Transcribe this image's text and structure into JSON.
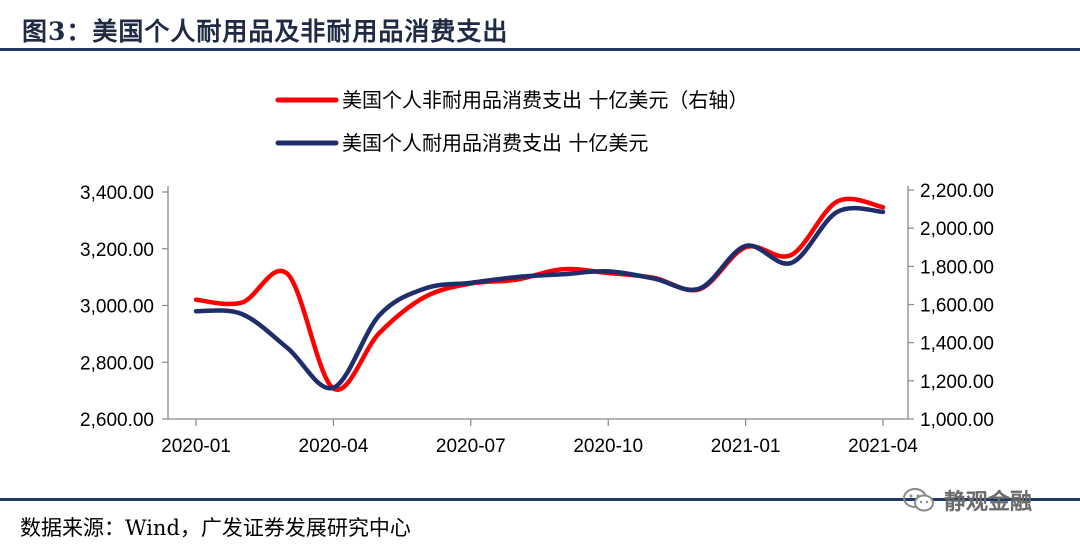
{
  "figure": {
    "title": "图3：美国个人耐用品及非耐用品消费支出",
    "source": "数据来源：Wind，广发证券发展研究中心"
  },
  "watermark": {
    "icon": "wechat-icon",
    "text": "静观金融"
  },
  "chart_data": {
    "type": "line",
    "grid": false,
    "legend_position": "top-center",
    "x_ticks": [
      "2020-01",
      "2020-04",
      "2020-07",
      "2020-10",
      "2021-01",
      "2021-04"
    ],
    "x": [
      "2020-01",
      "2020-02",
      "2020-03",
      "2020-04",
      "2020-05",
      "2020-06",
      "2020-07",
      "2020-08",
      "2020-09",
      "2020-10",
      "2020-11",
      "2020-12",
      "2021-01",
      "2021-02",
      "2021-03",
      "2021-04"
    ],
    "y_left": {
      "range": [
        2600,
        3400
      ],
      "ticks": [
        "2,600.00",
        "2,800.00",
        "3,000.00",
        "3,200.00",
        "3,400.00"
      ]
    },
    "y_right": {
      "range": [
        1000,
        2200
      ],
      "ticks": [
        "1,000.00",
        "1,200.00",
        "1,400.00",
        "1,600.00",
        "1,800.00",
        "2,000.00",
        "2,200.00"
      ]
    },
    "series": [
      {
        "name": "美国个人非耐用品消费支出 十亿美元（右轴）",
        "axis": "right",
        "color": "#ff0000",
        "values": [
          1625,
          1610,
          1760,
          1160,
          1450,
          1640,
          1710,
          1730,
          1785,
          1765,
          1740,
          1680,
          1900,
          1860,
          2140,
          2110
        ]
      },
      {
        "name": "美国个人耐用品消费支出 十亿美元",
        "axis": "left",
        "color": "#1f2d6b",
        "values": [
          2980,
          2970,
          2850,
          2710,
          2965,
          3060,
          3080,
          3100,
          3110,
          3120,
          3095,
          3060,
          3210,
          3150,
          3330,
          3330
        ]
      }
    ]
  }
}
